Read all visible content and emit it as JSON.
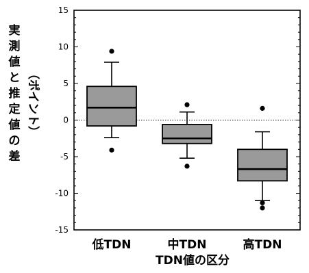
{
  "chart_data": {
    "type": "box",
    "categories": [
      "低TDN",
      "中TDN",
      "高TDN"
    ],
    "xlabel": "TDN値の区分",
    "ylabel": "実測値と推定値の差",
    "ylabel_unit": "（ポイント）",
    "ylim": [
      -15,
      15
    ],
    "yticks": [
      15,
      10,
      5,
      0,
      -5,
      -10,
      -15
    ],
    "grid": false,
    "reference_line": 0,
    "box_color": "#9a9a9a",
    "boxes": [
      {
        "category": "低TDN",
        "q1": -0.8,
        "median": 1.7,
        "q3": 4.6,
        "whisker_low": -2.4,
        "whisker_high": 7.9,
        "outliers": [
          9.4,
          -4.1
        ]
      },
      {
        "category": "中TDN",
        "q1": -3.2,
        "median": -2.5,
        "q3": -0.6,
        "whisker_low": -5.2,
        "whisker_high": 1.1,
        "outliers": [
          2.1,
          -6.3
        ]
      },
      {
        "category": "高TDN",
        "q1": -8.3,
        "median": -6.7,
        "q3": -4.0,
        "whisker_low": -11.0,
        "whisker_high": -1.6,
        "outliers": [
          1.6,
          -11.3,
          -12.0
        ]
      }
    ]
  }
}
